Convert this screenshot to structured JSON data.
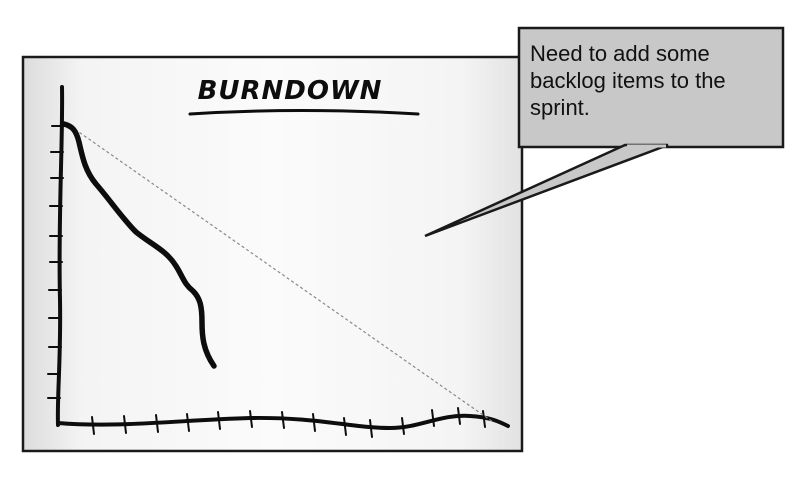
{
  "diagram": {
    "title": "BURNDOWN",
    "callout": "Need to add some backlog items to the sprint."
  },
  "colors": {
    "board_border": "#1a1a1a",
    "board_fill_light": "#fafafa",
    "board_fill_edge": "#dcdcdc",
    "ink": "#0d0d0d",
    "ideal_line": "#8a8a8a",
    "callout_fill": "#c8c8c8",
    "callout_border": "#1a1a1a"
  }
}
